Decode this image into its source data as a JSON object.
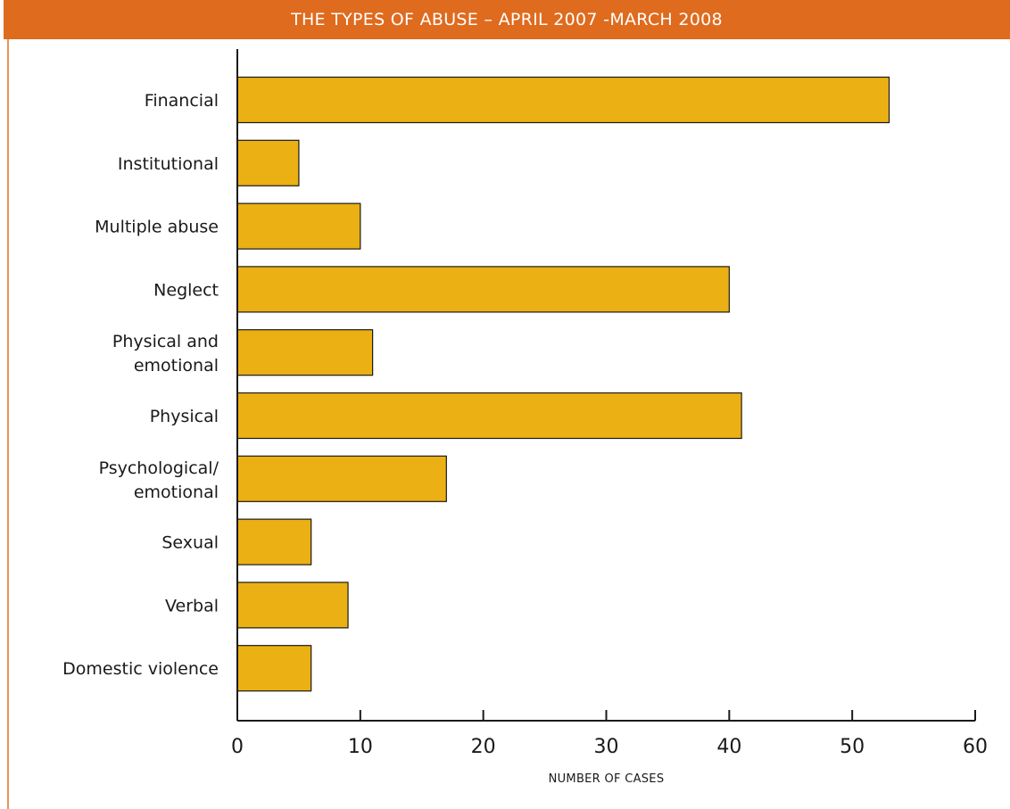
{
  "chart_data": {
    "type": "bar",
    "orientation": "horizontal",
    "title": "THE TYPES OF ABUSE – APRIL 2007 -MARCH 2008",
    "xlabel": "NUMBER OF CASES",
    "ylabel": "",
    "xlim": [
      0,
      60
    ],
    "xticks": [
      "0",
      "10",
      "20",
      "30",
      "40",
      "50",
      "60"
    ],
    "grid": false,
    "legend": "none",
    "bar_color": "#ebb013",
    "header_color": "#df6b1e",
    "categories": [
      [
        "Financial"
      ],
      [
        "Institutional"
      ],
      [
        "Multiple abuse"
      ],
      [
        "Neglect"
      ],
      [
        "Physical and",
        "emotional"
      ],
      [
        "Physical"
      ],
      [
        "Psychological/",
        "emotional"
      ],
      [
        "Sexual"
      ],
      [
        "Verbal"
      ],
      [
        "Domestic violence"
      ]
    ],
    "values": [
      53,
      5,
      10,
      40,
      11,
      41,
      17,
      6,
      9,
      6
    ]
  }
}
